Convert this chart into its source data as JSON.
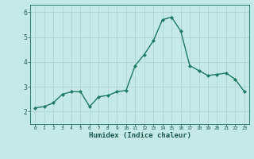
{
  "x": [
    0,
    1,
    2,
    3,
    4,
    5,
    6,
    7,
    8,
    9,
    10,
    11,
    12,
    13,
    14,
    15,
    16,
    17,
    18,
    19,
    20,
    21,
    22,
    23
  ],
  "y": [
    2.15,
    2.2,
    2.35,
    2.7,
    2.8,
    2.8,
    2.2,
    2.6,
    2.65,
    2.8,
    2.85,
    3.85,
    4.3,
    4.85,
    5.7,
    5.8,
    5.25,
    3.85,
    3.65,
    3.45,
    3.5,
    3.55,
    3.3,
    2.8
  ],
  "xlabel": "Humidex (Indice chaleur)",
  "ylim": [
    1.5,
    6.3
  ],
  "xlim": [
    -0.5,
    23.5
  ],
  "yticks": [
    2,
    3,
    4,
    5,
    6
  ],
  "xticks": [
    0,
    1,
    2,
    3,
    4,
    5,
    6,
    7,
    8,
    9,
    10,
    11,
    12,
    13,
    14,
    15,
    16,
    17,
    18,
    19,
    20,
    21,
    22,
    23
  ],
  "line_color": "#1e7a65",
  "marker_color": "#1e7a65",
  "bg_color": "#c5e8e8",
  "grid_color": "#aed4d4",
  "axis_color": "#2a7a6a",
  "tick_color": "#1a5a4a",
  "xlabel_color": "#1a5a4a"
}
